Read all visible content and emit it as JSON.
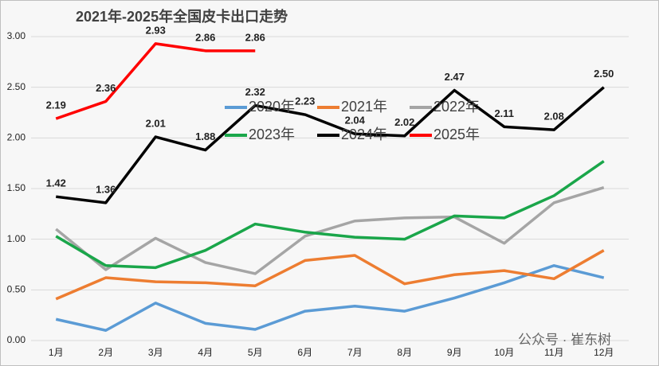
{
  "chart_data": {
    "type": "line",
    "title": "2021年-2025年全国皮卡出口走势",
    "watermark": "公众号 · 崔东树",
    "categories": [
      "1月",
      "2月",
      "3月",
      "4月",
      "5月",
      "6月",
      "7月",
      "8月",
      "9月",
      "10月",
      "11月",
      "12月"
    ],
    "ylim": [
      0,
      3
    ],
    "yticks": [
      {
        "value": 0,
        "label": "0.00"
      },
      {
        "value": 0.5,
        "label": "0.50"
      },
      {
        "value": 1,
        "label": "1.00"
      },
      {
        "value": 1.5,
        "label": "1.50"
      },
      {
        "value": 2,
        "label": "2.00"
      },
      {
        "value": 2.5,
        "label": "2.50"
      },
      {
        "value": 3,
        "label": "3.00"
      }
    ],
    "grid": true,
    "series": [
      {
        "name": "2020年",
        "color": "#5b9bd5",
        "values": [
          0.21,
          0.1,
          0.37,
          0.17,
          0.11,
          0.29,
          0.34,
          0.29,
          0.42,
          0.57,
          0.74,
          0.62
        ]
      },
      {
        "name": "2021年",
        "color": "#ed7d31",
        "values": [
          0.41,
          0.62,
          0.58,
          0.57,
          0.54,
          0.79,
          0.84,
          0.56,
          0.65,
          0.69,
          0.61,
          0.89
        ]
      },
      {
        "name": "2022年",
        "color": "#a5a5a5",
        "values": [
          1.1,
          0.7,
          1.01,
          0.77,
          0.66,
          1.03,
          1.18,
          1.21,
          1.22,
          0.96,
          1.36,
          1.51
        ]
      },
      {
        "name": "2023年",
        "color": "#1aa64a",
        "values": [
          1.03,
          0.74,
          0.72,
          0.89,
          1.15,
          1.07,
          1.02,
          1.0,
          1.23,
          1.21,
          1.43,
          1.77
        ]
      },
      {
        "name": "2024年",
        "color": "#000000",
        "values": [
          1.42,
          1.36,
          2.01,
          1.88,
          2.32,
          2.23,
          2.04,
          2.02,
          2.47,
          2.11,
          2.08,
          2.5
        ],
        "value_labels": [
          "1.42",
          "1.36",
          "2.01",
          "1.88",
          "2.32",
          "2.23",
          "2.04",
          "2.02",
          "2.47",
          "2.11",
          "2.08",
          "2.50"
        ]
      },
      {
        "name": "2025年",
        "color": "#ff0000",
        "values": [
          2.19,
          2.36,
          2.93,
          2.86,
          2.86,
          null,
          null,
          null,
          null,
          null,
          null,
          null
        ],
        "value_labels": [
          "2.19",
          "2.36",
          "2.93",
          "2.86",
          "2.86",
          null,
          null,
          null,
          null,
          null,
          null,
          null
        ]
      }
    ]
  }
}
